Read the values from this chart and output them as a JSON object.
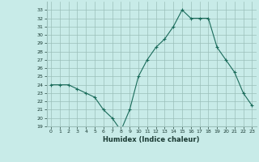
{
  "x": [
    0,
    1,
    2,
    3,
    4,
    5,
    6,
    7,
    8,
    9,
    10,
    11,
    12,
    13,
    14,
    15,
    16,
    17,
    18,
    19,
    20,
    21,
    22,
    23
  ],
  "y": [
    24,
    24,
    24,
    23.5,
    23,
    22.5,
    21,
    20,
    18.5,
    21,
    25,
    27,
    28.5,
    29.5,
    31,
    33,
    32,
    32,
    32,
    28.5,
    27,
    25.5,
    23,
    21.5
  ],
  "xlabel": "Humidex (Indice chaleur)",
  "ylim": [
    19,
    34
  ],
  "xlim": [
    -0.5,
    23.5
  ],
  "yticks": [
    19,
    20,
    21,
    22,
    23,
    24,
    25,
    26,
    27,
    28,
    29,
    30,
    31,
    32,
    33
  ],
  "xticks": [
    0,
    1,
    2,
    3,
    4,
    5,
    6,
    7,
    8,
    9,
    10,
    11,
    12,
    13,
    14,
    15,
    16,
    17,
    18,
    19,
    20,
    21,
    22,
    23
  ],
  "line_color": "#1a6b5a",
  "bg_color": "#c8ebe8",
  "grid_color": "#9bbfba",
  "tick_label_color": "#1a3a33",
  "xlabel_color": "#1a3a33"
}
